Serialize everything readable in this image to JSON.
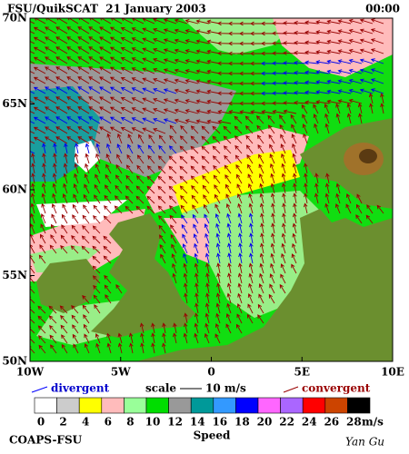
{
  "header": {
    "title": "FSU/QuikSCAT  21 January 2003",
    "time": "00:00"
  },
  "map": {
    "lat_labels": [
      "70N",
      "65N",
      "60N",
      "55N",
      "50N"
    ],
    "lon_labels": [
      "10W",
      "5W",
      "0",
      "5E",
      "10E"
    ]
  },
  "legend": {
    "divergent": "divergent",
    "scale": "scale",
    "scale_value": "10 m/s",
    "convergent": "convergent"
  },
  "colorbar": {
    "labels": [
      0,
      2,
      4,
      6,
      8,
      10,
      12,
      14,
      16,
      18,
      20,
      22,
      24,
      26,
      28
    ],
    "unit": "m/s",
    "title": "Speed",
    "colors": [
      "#ffffff",
      "#cccccc",
      "#ffff00",
      "#ffbbbb",
      "#99ff99",
      "#00dd00",
      "#999999",
      "#009999",
      "#3399ff",
      "#0000ff",
      "#ff66ff",
      "#aa66ff",
      "#ff0000",
      "#cc4400",
      "#000000"
    ]
  },
  "footer": {
    "left": "COAPS-FSU",
    "right": "Yan Gu"
  }
}
